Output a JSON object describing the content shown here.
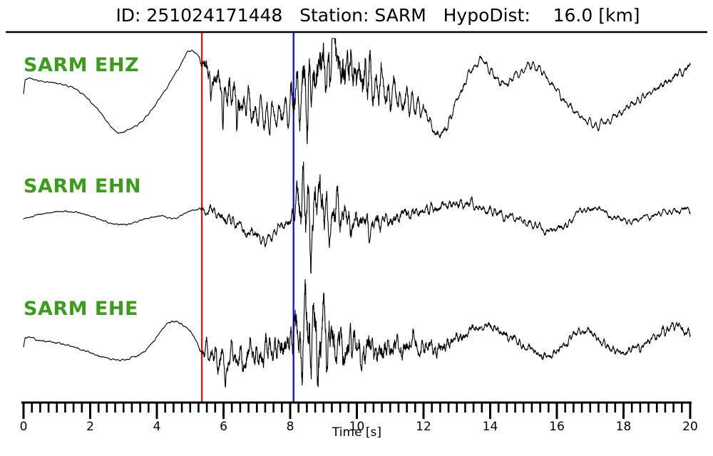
{
  "header": {
    "title_text": "ID: 251024171448   Station: SARM   HypoDist:    16.0 [km]",
    "event_id": "251024171448",
    "station": "SARM",
    "hypo_dist_km": "16.0"
  },
  "colors": {
    "background": "#ffffff",
    "label_green": "#3c9c1e",
    "trace": "#000000",
    "axis": "#000000",
    "p_pick": "#ff0000",
    "s_pick": "#0000ff"
  },
  "chart_data": {
    "type": "line",
    "title": "ID: 251024171448  Station: SARM  HypoDist: 16.0 [km]",
    "xlabel": "Time [s]",
    "ylabel": "",
    "xlim": [
      0,
      20
    ],
    "x_major_ticks": [
      0,
      2,
      4,
      6,
      8,
      10,
      12,
      14,
      16,
      18,
      20
    ],
    "x_minor_step": 0.25,
    "grid": false,
    "legend": "none",
    "picks": [
      {
        "name": "p-pick",
        "time_s": 5.35,
        "color": "#ff0000"
      },
      {
        "name": "s-pick",
        "time_s": 8.1,
        "color": "#0000ff"
      }
    ],
    "channels": [
      {
        "label": "SARM EHZ",
        "seed": 11,
        "center": 140,
        "clip": [
          54,
          285
        ],
        "lf": [
          [
            0,
            -8
          ],
          [
            0.06,
            -28
          ],
          [
            0.5,
            -26
          ],
          [
            1.0,
            -23
          ],
          [
            1.6,
            -14
          ],
          [
            2.2,
            12
          ],
          [
            2.78,
            45
          ],
          [
            3.1,
            43
          ],
          [
            3.6,
            28
          ],
          [
            4.2,
            -10
          ],
          [
            4.7,
            -48
          ],
          [
            4.95,
            -68
          ],
          [
            5.2,
            -64
          ],
          [
            5.35,
            -52
          ],
          [
            5.6,
            -38
          ],
          [
            6.1,
            -14
          ],
          [
            6.7,
            8
          ],
          [
            7.3,
            23
          ],
          [
            7.8,
            18
          ],
          [
            8.1,
            2
          ],
          [
            8.4,
            -22
          ],
          [
            8.9,
            -42
          ],
          [
            9.3,
            -52
          ],
          [
            9.7,
            -45
          ],
          [
            10.2,
            -32
          ],
          [
            10.7,
            -18
          ],
          [
            11.3,
            -2
          ],
          [
            12.0,
            15
          ],
          [
            12.5,
            50
          ],
          [
            13.2,
            -20
          ],
          [
            13.7,
            -55
          ],
          [
            14.1,
            -35
          ],
          [
            14.4,
            -22
          ],
          [
            14.8,
            -35
          ],
          [
            15.3,
            -48
          ],
          [
            15.8,
            -25
          ],
          [
            16.3,
            5
          ],
          [
            17.1,
            35
          ],
          [
            17.6,
            28
          ],
          [
            18.2,
            8
          ],
          [
            18.8,
            -10
          ],
          [
            19.4,
            -28
          ],
          [
            20,
            -48
          ]
        ],
        "env": [
          [
            0,
            0.9
          ],
          [
            5.25,
            1.3
          ],
          [
            5.45,
            22
          ],
          [
            6.3,
            26
          ],
          [
            7.2,
            22
          ],
          [
            7.95,
            20
          ],
          [
            8.15,
            40
          ],
          [
            8.6,
            50
          ],
          [
            9.1,
            55
          ],
          [
            9.45,
            58
          ],
          [
            9.9,
            45
          ],
          [
            10.4,
            34
          ],
          [
            11.0,
            24
          ],
          [
            11.7,
            15
          ],
          [
            12.4,
            9
          ],
          [
            13.2,
            7
          ],
          [
            14.5,
            7
          ],
          [
            16,
            6
          ],
          [
            18,
            6
          ],
          [
            20,
            7
          ]
        ],
        "spikes": [
          [
            5.62,
            45,
            0.025
          ],
          [
            5.98,
            65,
            0.03
          ],
          [
            6.4,
            50,
            0.025
          ],
          [
            8.52,
            85,
            0.04
          ],
          [
            9.3,
            -55,
            0.05
          ]
        ]
      },
      {
        "label": "SARM EHN",
        "seed": 22,
        "center": 300,
        "clip": [
          216,
          402
        ],
        "lf": [
          [
            0,
            7
          ],
          [
            0.7,
            -1
          ],
          [
            1.4,
            -3
          ],
          [
            2.0,
            3
          ],
          [
            2.6,
            13
          ],
          [
            3.1,
            15
          ],
          [
            3.6,
            8
          ],
          [
            4.15,
            3
          ],
          [
            4.5,
            7
          ],
          [
            4.9,
            -2
          ],
          [
            5.2,
            -6
          ],
          [
            5.35,
            -6
          ],
          [
            5.8,
            0
          ],
          [
            6.3,
            12
          ],
          [
            6.9,
            30
          ],
          [
            7.3,
            35
          ],
          [
            7.7,
            20
          ],
          [
            8.0,
            7
          ],
          [
            8.1,
            3
          ],
          [
            8.4,
            -10
          ],
          [
            8.8,
            -5
          ],
          [
            9.3,
            0
          ],
          [
            9.8,
            8
          ],
          [
            10.3,
            15
          ],
          [
            10.9,
            10
          ],
          [
            11.5,
            0
          ],
          [
            12.1,
            -5
          ],
          [
            12.7,
            -12
          ],
          [
            13.3,
            -14
          ],
          [
            13.9,
            -5
          ],
          [
            14.5,
            3
          ],
          [
            15.1,
            12
          ],
          [
            15.7,
            23
          ],
          [
            16.2,
            18
          ],
          [
            16.7,
            -3
          ],
          [
            17.2,
            -7
          ],
          [
            17.7,
            5
          ],
          [
            18.2,
            10
          ],
          [
            18.8,
            3
          ],
          [
            19.4,
            -3
          ],
          [
            20,
            -6
          ]
        ],
        "env": [
          [
            0,
            0.9
          ],
          [
            5.25,
            1.2
          ],
          [
            5.45,
            9
          ],
          [
            6.4,
            11
          ],
          [
            7.3,
            10
          ],
          [
            8.0,
            10
          ],
          [
            8.2,
            35
          ],
          [
            8.55,
            52
          ],
          [
            8.95,
            42
          ],
          [
            9.5,
            28
          ],
          [
            10.1,
            20
          ],
          [
            10.8,
            15
          ],
          [
            11.6,
            11
          ],
          [
            12.5,
            9
          ],
          [
            13.5,
            8
          ],
          [
            15,
            7
          ],
          [
            16.5,
            6
          ],
          [
            18,
            5
          ],
          [
            20,
            5
          ]
        ],
        "spikes": [
          [
            8.38,
            -55,
            0.03
          ],
          [
            8.62,
            50,
            0.028
          ],
          [
            8.9,
            -35,
            0.03
          ]
        ]
      },
      {
        "label": "SARM EHE",
        "seed": 33,
        "center": 480,
        "clip": [
          390,
          565
        ],
        "lf": [
          [
            0,
            7
          ],
          [
            0.06,
            -6
          ],
          [
            0.5,
            -2
          ],
          [
            1.1,
            2
          ],
          [
            1.7,
            10
          ],
          [
            2.3,
            20
          ],
          [
            2.8,
            25
          ],
          [
            3.2,
            23
          ],
          [
            3.7,
            10
          ],
          [
            4.3,
            -25
          ],
          [
            4.6,
            -28
          ],
          [
            5.0,
            -15
          ],
          [
            5.35,
            12
          ],
          [
            5.7,
            20
          ],
          [
            6.2,
            23
          ],
          [
            6.8,
            20
          ],
          [
            7.4,
            12
          ],
          [
            7.9,
            2
          ],
          [
            8.1,
            -5
          ],
          [
            8.5,
            -10
          ],
          [
            9.0,
            -2
          ],
          [
            9.5,
            5
          ],
          [
            10.0,
            10
          ],
          [
            10.6,
            12
          ],
          [
            11.2,
            8
          ],
          [
            11.8,
            5
          ],
          [
            12.4,
            10
          ],
          [
            12.9,
            -2
          ],
          [
            13.4,
            -15
          ],
          [
            13.9,
            -22
          ],
          [
            14.4,
            -12
          ],
          [
            14.9,
            2
          ],
          [
            15.4,
            15
          ],
          [
            15.8,
            20
          ],
          [
            16.3,
            0
          ],
          [
            16.8,
            -17
          ],
          [
            17.3,
            -2
          ],
          [
            17.8,
            14
          ],
          [
            18.3,
            10
          ],
          [
            18.8,
            -2
          ],
          [
            19.3,
            -18
          ],
          [
            19.6,
            -22
          ],
          [
            20,
            -12
          ]
        ],
        "env": [
          [
            0,
            1
          ],
          [
            5.25,
            1.5
          ],
          [
            5.5,
            18
          ],
          [
            6.4,
            21
          ],
          [
            7.3,
            23
          ],
          [
            8.0,
            26
          ],
          [
            8.2,
            45
          ],
          [
            8.6,
            58
          ],
          [
            9.05,
            52
          ],
          [
            9.6,
            40
          ],
          [
            10.1,
            32
          ],
          [
            10.7,
            25
          ],
          [
            11.4,
            20
          ],
          [
            12.2,
            17
          ],
          [
            13.0,
            11
          ],
          [
            13.8,
            8
          ],
          [
            15,
            8
          ],
          [
            16.5,
            7
          ],
          [
            18,
            7
          ],
          [
            20,
            8
          ]
        ],
        "spikes": [
          [
            6.05,
            45,
            0.03
          ],
          [
            8.45,
            -60,
            0.03
          ],
          [
            8.62,
            55,
            0.03
          ],
          [
            9.0,
            -40,
            0.035
          ]
        ]
      }
    ]
  }
}
